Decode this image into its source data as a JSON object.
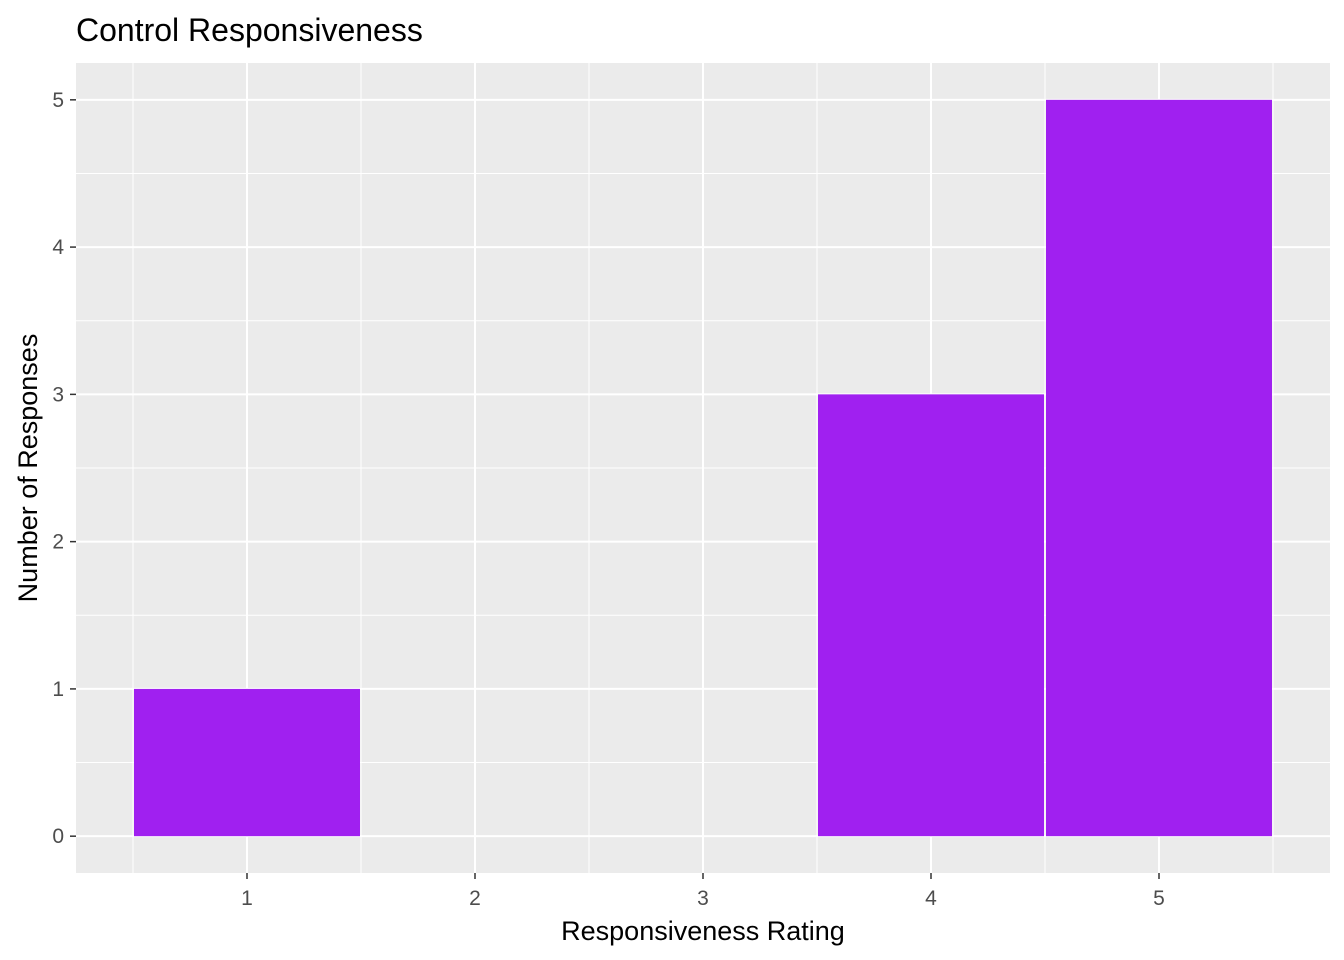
{
  "chart_data": {
    "type": "bar",
    "title": "Control Responsiveness",
    "xlabel": "Responsiveness Rating",
    "ylabel": "Number of Responses",
    "categories": [
      1,
      2,
      3,
      4,
      5
    ],
    "values": [
      1,
      0,
      0,
      3,
      5
    ],
    "xlim": [
      0.25,
      5.75
    ],
    "ylim": [
      -0.25,
      5.25
    ],
    "x_ticks": [
      1,
      2,
      3,
      4,
      5
    ],
    "y_ticks": [
      0,
      1,
      2,
      3,
      4,
      5
    ],
    "bar_color": "#A020F0",
    "panel_background": "#EBEBEB",
    "grid": true,
    "legend": "none"
  }
}
